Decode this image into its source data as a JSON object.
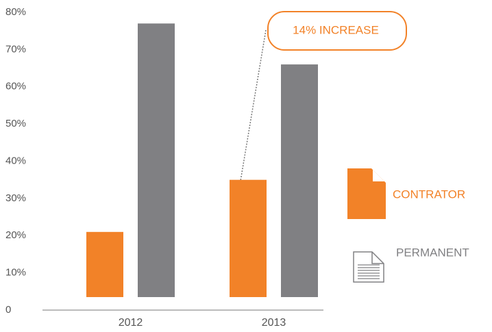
{
  "chart_data": {
    "type": "bar",
    "categories": [
      "2012",
      "2013"
    ],
    "series": [
      {
        "name": "CONTRATOR",
        "color": "#f28228",
        "values": [
          21,
          35
        ]
      },
      {
        "name": "PERMANENT",
        "color": "#808083",
        "values": [
          77,
          66
        ]
      }
    ],
    "ylim": [
      0,
      80
    ],
    "yticks": [
      0,
      {
        "value": 10,
        "label": "10%"
      },
      {
        "value": 20,
        "label": "20%"
      },
      {
        "value": 30,
        "label": "30%"
      },
      {
        "value": 40,
        "label": "40%"
      },
      {
        "value": 50,
        "label": "50%"
      },
      {
        "value": 60,
        "label": "60%"
      },
      {
        "value": 70,
        "label": "70%"
      },
      {
        "value": 80,
        "label": "80%"
      }
    ],
    "grid": false,
    "legend": "right",
    "annotation": "14% INCREASE"
  }
}
